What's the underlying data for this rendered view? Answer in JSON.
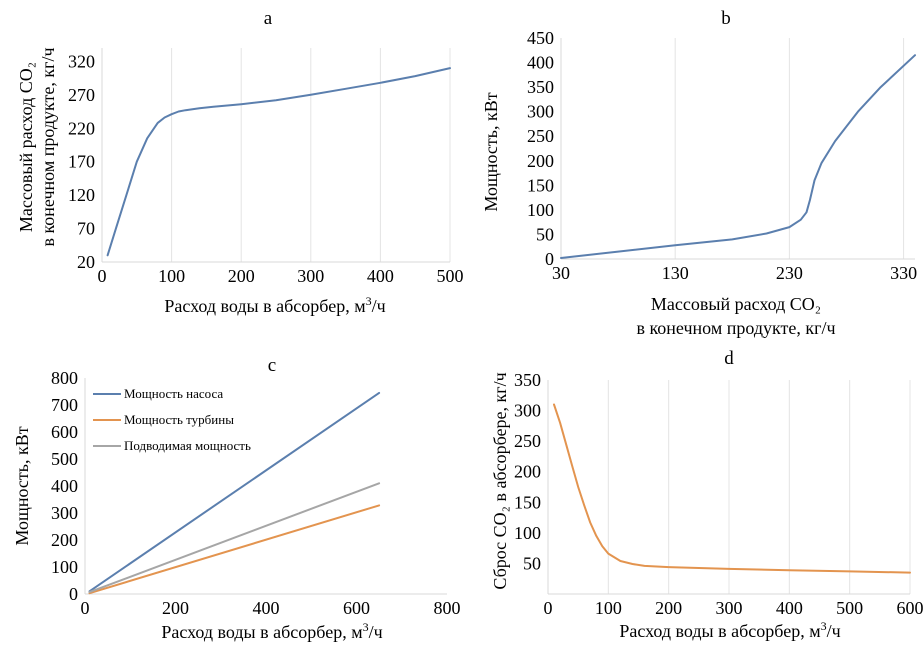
{
  "colors": {
    "blue": "#5b7fae",
    "orange": "#e3944f",
    "gray": "#a6a6a6",
    "grid": "#e4e4e4"
  },
  "chart_data": [
    {
      "id": "a",
      "type": "line",
      "title": "a",
      "xlabel": "Расход воды в абсорбер, м³/ч",
      "xlabel_parts": {
        "main": "Расход воды в абсорбер, м",
        "sup": "3",
        "tail": "/ч"
      },
      "ylabel_lines": [
        "Массовый расход CO₂",
        "в конечном продукте, кг/ч"
      ],
      "xlim": [
        0,
        500
      ],
      "ylim": [
        20,
        340
      ],
      "xticks": [
        0,
        100,
        200,
        300,
        400,
        500
      ],
      "yticks": [
        20,
        70,
        120,
        170,
        220,
        270,
        320
      ],
      "grid": "vertical",
      "series": [
        {
          "color": "#5b7fae",
          "x": [
            8,
            20,
            35,
            50,
            65,
            80,
            90,
            100,
            110,
            120,
            140,
            160,
            200,
            250,
            300,
            350,
            400,
            450,
            500
          ],
          "y": [
            30,
            70,
            120,
            170,
            205,
            228,
            236,
            241,
            245,
            247,
            250,
            252,
            256,
            262,
            270,
            279,
            288,
            298,
            310
          ]
        }
      ]
    },
    {
      "id": "b",
      "type": "line",
      "title": "b",
      "xlabel_lines": [
        "Массовый расход CO₂",
        "в конечном продукте, кг/ч"
      ],
      "ylabel": "Мощность, кВт",
      "xlim": [
        30,
        340
      ],
      "ylim": [
        0,
        450
      ],
      "xticks": [
        30,
        130,
        230,
        330
      ],
      "yticks": [
        0,
        50,
        100,
        150,
        200,
        250,
        300,
        350,
        400,
        450
      ],
      "grid": "vertical",
      "series": [
        {
          "color": "#5b7fae",
          "x": [
            30,
            80,
            130,
            180,
            210,
            230,
            240,
            245,
            248,
            252,
            258,
            270,
            290,
            310,
            340
          ],
          "y": [
            2,
            15,
            28,
            40,
            52,
            65,
            80,
            95,
            120,
            160,
            195,
            240,
            300,
            350,
            415
          ]
        }
      ]
    },
    {
      "id": "c",
      "type": "line",
      "title": "c",
      "xlabel": "Расход воды в абсорбер, м³/ч",
      "xlabel_parts": {
        "main": "Расход воды в абсорбер, м",
        "sup": "3",
        "tail": "/ч"
      },
      "ylabel": "Мощность, кВт",
      "xlim": [
        0,
        800
      ],
      "ylim": [
        0,
        800
      ],
      "xticks": [
        0,
        200,
        400,
        600,
        800
      ],
      "yticks": [
        0,
        100,
        200,
        300,
        400,
        500,
        600,
        700,
        800
      ],
      "grid": "none",
      "legend": "top-left",
      "series": [
        {
          "name": "Мощность насоса",
          "color": "#5b7fae",
          "x": [
            10,
            650
          ],
          "y": [
            10,
            745
          ]
        },
        {
          "name": "Мощность турбины",
          "color": "#e3944f",
          "x": [
            10,
            650
          ],
          "y": [
            3,
            328
          ]
        },
        {
          "name": "Подводимая мощность",
          "color": "#a6a6a6",
          "x": [
            10,
            650
          ],
          "y": [
            7,
            410
          ]
        }
      ]
    },
    {
      "id": "d",
      "type": "line",
      "title": "d",
      "xlabel": "Расход воды в абсорбер, м³/ч",
      "xlabel_parts": {
        "main": "Расход воды в абсорбер, м",
        "sup": "3",
        "tail": "/ч"
      },
      "ylabel": "Сброс CO₂ в абсорбере, кг/ч",
      "xlim": [
        0,
        600
      ],
      "ylim": [
        0,
        350
      ],
      "xticks": [
        0,
        100,
        200,
        300,
        400,
        500,
        600
      ],
      "yticks": [
        50,
        100,
        150,
        200,
        250,
        300,
        350
      ],
      "grid": "vertical",
      "series": [
        {
          "color": "#e3944f",
          "x": [
            10,
            20,
            30,
            40,
            50,
            60,
            70,
            80,
            90,
            100,
            120,
            140,
            160,
            200,
            300,
            400,
            500,
            600
          ],
          "y": [
            310,
            280,
            245,
            210,
            175,
            145,
            117,
            95,
            78,
            66,
            54,
            49,
            46,
            44,
            41,
            39,
            37,
            35
          ]
        }
      ]
    }
  ]
}
